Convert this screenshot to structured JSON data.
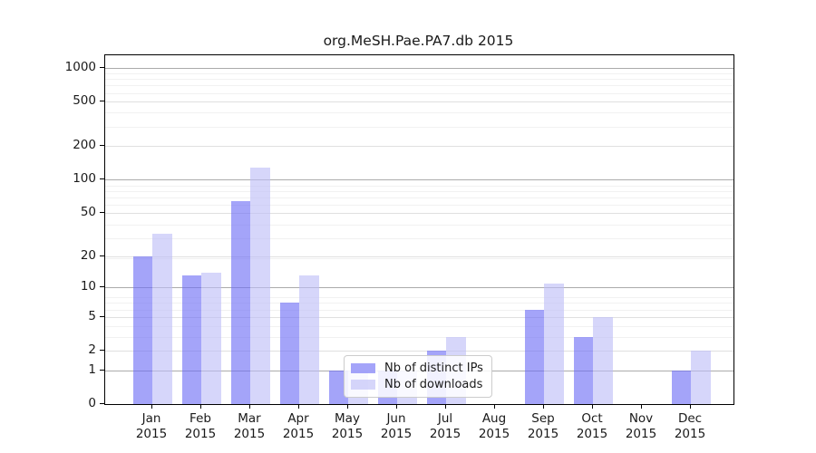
{
  "chart_data": {
    "type": "bar",
    "title": "org.MeSH.Pae.PA7.db 2015",
    "categories": [
      "Jan",
      "Feb",
      "Mar",
      "Apr",
      "May",
      "Jun",
      "Jul",
      "Aug",
      "Sep",
      "Oct",
      "Nov",
      "Dec"
    ],
    "category_year": "2015",
    "series": [
      {
        "name": "Nb of distinct IPs",
        "color": "rgba(108,108,246,0.62)",
        "values": [
          20,
          13,
          64,
          7,
          1,
          1,
          2,
          0,
          6,
          3,
          0,
          1
        ]
      },
      {
        "name": "Nb of downloads",
        "color": "rgba(189,189,247,0.62)",
        "values": [
          32,
          14,
          128,
          13,
          1,
          1,
          3,
          0,
          11,
          5,
          0,
          2
        ]
      }
    ],
    "xlabel": "",
    "ylabel": "",
    "yticks": [
      0,
      1,
      2,
      5,
      10,
      20,
      50,
      100,
      200,
      500,
      1000
    ],
    "yscale": "log10(1+x)",
    "ylim": [
      0,
      1300
    ],
    "grid": true,
    "legend_position": "lower center-left, overlapping May-Jul"
  },
  "colors": {
    "grid_major": "#ababab",
    "grid_sub": "#e0e0e0",
    "grid_minor": "#f1f1f1",
    "axis": "#000000",
    "text": "#1a1a1a",
    "legend_border": "#cccccc"
  }
}
